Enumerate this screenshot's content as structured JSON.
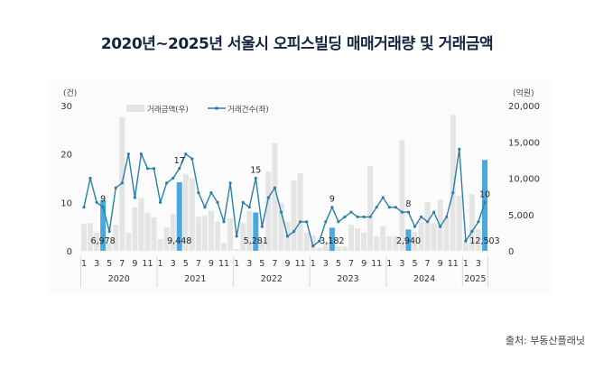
{
  "title": "2020년~2025년 서울시 오피스빌딩 매매거래량 및 거래금액",
  "source": "출처: 부동산플래닛",
  "colors": {
    "bar": "#e4e4e4",
    "bar_highlight": "#4aa8e0",
    "line": "#2a7fa8",
    "title": "#14233f"
  },
  "chart_data": {
    "type": "bar+line",
    "title": "2020년~2025년 서울시 오피스빌딩 매매거래량 및 거래금액",
    "left_axis": {
      "unit": "(건)",
      "ticks": [
        "0",
        "10",
        "20",
        "30"
      ],
      "range": [
        0,
        30
      ]
    },
    "right_axis": {
      "unit": "(억원)",
      "ticks": [
        "0",
        "5,000",
        "10,000",
        "15,000",
        "20,000"
      ],
      "range": [
        0,
        20000
      ]
    },
    "legend": {
      "position": "top-left",
      "bar_label": "거래금액(우)",
      "line_label": "거래건수(좌)"
    },
    "years": [
      {
        "label": "2020",
        "months": 12
      },
      {
        "label": "2021",
        "months": 12
      },
      {
        "label": "2022",
        "months": 12
      },
      {
        "label": "2023",
        "months": 12
      },
      {
        "label": "2024",
        "months": 12
      },
      {
        "label": "2025",
        "months": 4
      }
    ],
    "month_tick_labels": [
      "1",
      "3",
      "5",
      "7",
      "9",
      "11"
    ],
    "grid": false,
    "series": [
      {
        "name": "거래금액(우)",
        "type": "bar",
        "axis": "right",
        "values": [
          3700,
          3800,
          2500,
          6978,
          1000,
          3600,
          18400,
          2500,
          6000,
          7250,
          5200,
          4600,
          1600,
          3200,
          5100,
          9448,
          10600,
          10000,
          4700,
          4800,
          5500,
          4000,
          1150,
          4500,
          200,
          3800,
          5500,
          5281,
          1500,
          10900,
          14800,
          6600,
          4000,
          9700,
          10700,
          2500,
          2100,
          450,
          1200,
          3182,
          650,
          550,
          3600,
          3100,
          2500,
          11700,
          2000,
          3400,
          2000,
          2000,
          15200,
          2940,
          2600,
          4000,
          6700,
          3800,
          7000,
          4500,
          18700,
          7600,
          1100,
          7800,
          3000,
          12503
        ]
      },
      {
        "name": "거래건수(좌)",
        "type": "line",
        "axis": "left",
        "values": [
          9,
          15,
          10,
          9,
          4,
          13,
          14,
          20,
          11,
          20,
          17,
          17,
          10,
          14,
          15,
          17,
          20,
          19,
          12,
          9,
          12,
          10,
          6,
          14,
          3,
          10,
          9,
          15,
          5,
          11,
          13,
          8,
          3,
          4,
          6,
          6,
          1,
          2,
          6,
          9,
          6,
          7,
          8,
          7,
          7,
          7,
          9,
          11,
          9,
          9,
          8,
          8,
          5,
          7,
          6,
          8,
          5,
          7,
          12,
          21,
          2,
          4,
          6,
          10
        ]
      }
    ],
    "highlighted_months": [
      4,
      16,
      28,
      40,
      52,
      64
    ],
    "annotations": {
      "bar_labels": [
        "6,978",
        "9,448",
        "5,281",
        "3,182",
        "2,940",
        "12,503"
      ],
      "line_labels": [
        "9",
        "17",
        "15",
        "9",
        "8",
        "10"
      ]
    }
  }
}
